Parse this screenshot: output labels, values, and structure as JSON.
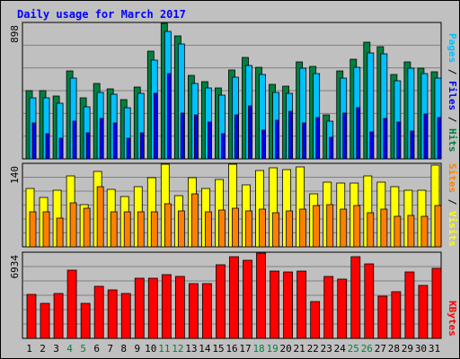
{
  "chart_data": {
    "type": "bar",
    "title": "Daily usage for March 2017",
    "categories": [
      "1",
      "2",
      "3",
      "4",
      "5",
      "6",
      "7",
      "8",
      "9",
      "10",
      "11",
      "12",
      "13",
      "14",
      "15",
      "16",
      "17",
      "18",
      "19",
      "20",
      "21",
      "22",
      "23",
      "24",
      "25",
      "26",
      "27",
      "28",
      "29",
      "30",
      "31"
    ],
    "weekend_days": [
      4,
      5,
      11,
      12,
      18,
      19,
      25,
      26
    ],
    "colors": {
      "title": "#0000ff",
      "pages": "#008040",
      "files": "#00c0ff",
      "hits": "#008040",
      "visits": "#ffff00",
      "sites": "#ff8000",
      "kbytes": "#ff0000",
      "weekday_label": "#000000",
      "weekend_label": "#008040",
      "plot_background": "#c0c0c0",
      "frame_background": "#c0c0c0",
      "separator": "#000000"
    },
    "panels": [
      {
        "id": "hits",
        "ymax_label": "898",
        "ylim": [
          0,
          898
        ],
        "legend": [
          {
            "text": "Pages",
            "color": "#00c0ff"
          },
          {
            "text": " / ",
            "color": "#000000"
          },
          {
            "text": "Files",
            "color": "#0000ff"
          },
          {
            "text": " / ",
            "color": "#000000"
          },
          {
            "text": "Hits",
            "color": "#008040"
          }
        ],
        "series": [
          {
            "name": "Hits",
            "color": "#008040",
            "values": [
              455,
              455,
              420,
              585,
              405,
              500,
              465,
              395,
              480,
              715,
              898,
              815,
              555,
              515,
              475,
              590,
              675,
              610,
              495,
              485,
              645,
              615,
              295,
              585,
              660,
              775,
              745,
              560,
              645,
              605,
              580
            ]
          },
          {
            "name": "Files",
            "color": "#00c0ff",
            "values": [
              410,
              410,
              375,
              535,
              350,
              445,
              430,
              345,
              435,
              655,
              845,
              765,
              505,
              470,
              425,
              545,
              620,
              560,
              445,
              440,
              605,
              570,
              255,
              535,
              610,
              705,
              700,
              520,
              600,
              570,
              540
            ]
          },
          {
            "name": "Pages",
            "color": "#0000ff",
            "values": [
              240,
              170,
              140,
              255,
              180,
              270,
              240,
              140,
              180,
              440,
              565,
              310,
              295,
              250,
              170,
              295,
              355,
              195,
              260,
              320,
              245,
              275,
              150,
              305,
              345,
              185,
              270,
              250,
              190,
              300,
              275
            ]
          }
        ]
      },
      {
        "id": "visits",
        "ymax_label": "140",
        "ylim": [
          0,
          140
        ],
        "legend": [
          {
            "text": "Sites",
            "color": "#ff8000"
          },
          {
            "text": " / ",
            "color": "#000000"
          },
          {
            "text": "Visits",
            "color": "#ffff00"
          }
        ],
        "series": [
          {
            "name": "Visits",
            "color": "#ffff00",
            "values": [
              100,
              84,
              97,
              120,
              72,
              128,
              98,
              86,
              103,
              118,
              140,
              88,
              117,
              100,
              114,
              140,
              106,
              130,
              134,
              131,
              135,
              91,
              110,
              108,
              108,
              120,
              110,
              102,
              96,
              96,
              139
            ]
          },
          {
            "name": "Sites",
            "color": "#ff8000",
            "values": [
              60,
              60,
              50,
              76,
              66,
              102,
              60,
              60,
              60,
              60,
              74,
              62,
              90,
              60,
              63,
              66,
              62,
              64,
              58,
              62,
              64,
              70,
              72,
              64,
              70,
              58,
              64,
              52,
              54,
              52,
              70
            ]
          }
        ]
      },
      {
        "id": "kbytes",
        "ymax_label": "6934",
        "ylim": [
          0,
          6934
        ],
        "legend": [
          {
            "text": "KBytes",
            "color": "#ff0000"
          }
        ],
        "series": [
          {
            "name": "KBytes",
            "color": "#ff0000",
            "values": [
              3600,
              2870,
              3690,
              5580,
              2890,
              4290,
              3940,
              3690,
              4900,
              4900,
              5210,
              5060,
              4490,
              4490,
              6010,
              6630,
              6350,
              6930,
              5480,
              5390,
              5480,
              3010,
              5050,
              4820,
              6630,
              6100,
              3460,
              3850,
              5400,
              4350,
              5680
            ]
          }
        ]
      }
    ],
    "grid": true
  }
}
